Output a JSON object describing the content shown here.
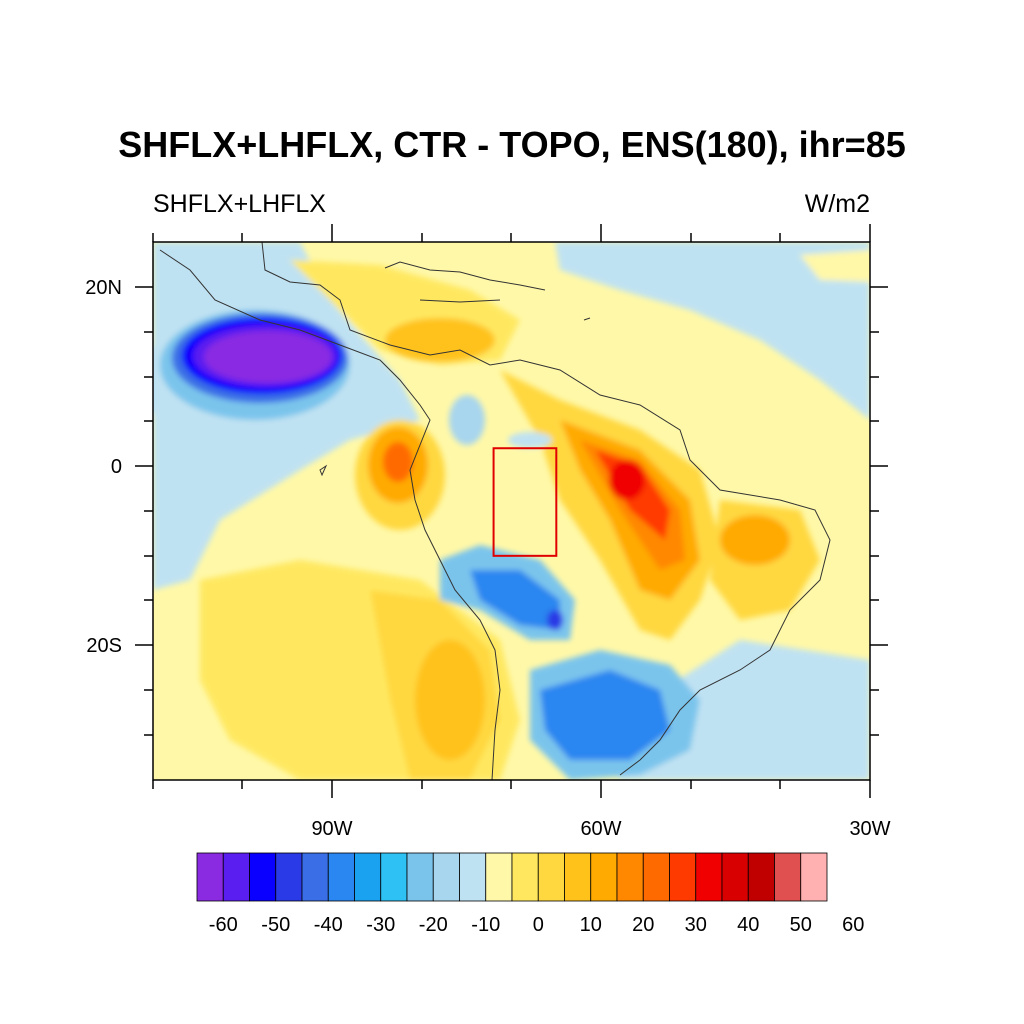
{
  "title": "SHFLX+LHFLX, CTR - TOPO, ENS(180), ihr=85",
  "subtitle_left": "SHFLX+LHFLX",
  "subtitle_right": "W/m2",
  "lat_labels": [
    "20N",
    "0",
    "20S"
  ],
  "lon_labels": [
    "90W",
    "60W",
    "30W"
  ],
  "colorbar": {
    "colors": [
      "#8a2be2",
      "#5a1ef0",
      "#0a00ff",
      "#2a3ae6",
      "#3a6ee6",
      "#2a86f0",
      "#1aa2f0",
      "#2ec2f4",
      "#7ac4ec",
      "#a8d6ee",
      "#bfe2f2",
      "#fff8a8",
      "#ffe860",
      "#ffd840",
      "#ffc21a",
      "#ffaa00",
      "#ff8800",
      "#ff6a00",
      "#ff3a00",
      "#f00000",
      "#d80000",
      "#c00000",
      "#e05050",
      "#ffb0b0"
    ],
    "labels": [
      "-60",
      "-50",
      "-40",
      "-30",
      "-20",
      "-10",
      "0",
      "10",
      "20",
      "30",
      "40",
      "50",
      "60"
    ]
  },
  "map": {
    "lon_range": [
      -110,
      -30
    ],
    "lat_range": [
      -35,
      25
    ],
    "highlight_box": {
      "lon": [
        -72,
        -65
      ],
      "lat": [
        -10,
        2
      ],
      "color": "#e00000"
    }
  }
}
